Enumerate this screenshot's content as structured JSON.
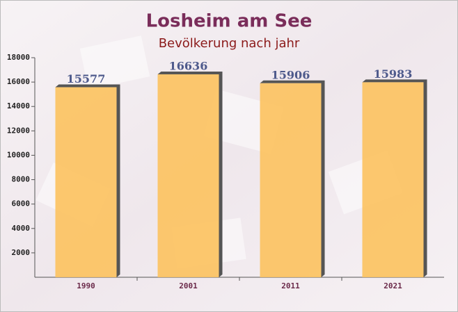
{
  "chart_data": {
    "type": "bar",
    "title": "Losheim am See",
    "subtitle": "Bevölkerung nach jahr",
    "categories": [
      "1990",
      "2001",
      "2011",
      "2021"
    ],
    "values": [
      15577,
      16636,
      15906,
      15983
    ],
    "color": "#fcc25e",
    "ylim": [
      0,
      18000
    ],
    "yticks": [
      2000,
      4000,
      6000,
      8000,
      10000,
      12000,
      14000,
      16000,
      18000
    ]
  }
}
